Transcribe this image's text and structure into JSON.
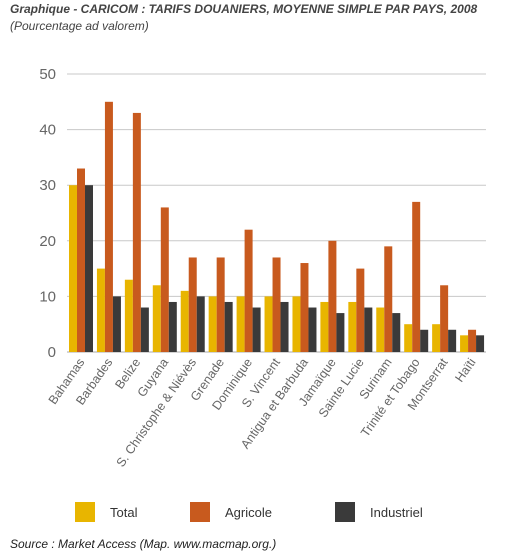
{
  "header": {
    "title": "Graphique - CARICOM  : TARIFS DOUANIERS, MOYENNE SIMPLE PAR PAYS, 2008",
    "subtitle": "(Pourcentage ad valorem)"
  },
  "footer": {
    "source": "Source  : Market Access (Map. www.macmap.org.)"
  },
  "chart_data": {
    "type": "bar",
    "title": "Graphique - CARICOM  : TARIFS DOUANIERS, MOYENNE SIMPLE PAR PAYS, 2008",
    "subtitle": "(Pourcentage ad valorem)",
    "xlabel": "",
    "ylabel": "",
    "ylim": [
      0,
      50
    ],
    "yticks": [
      0,
      10,
      20,
      30,
      40,
      50
    ],
    "grid": true,
    "legend_position": "bottom",
    "categories": [
      "Bahamas",
      "Barbades",
      "Belize",
      "Guyana",
      "S. Christophe & Niévès",
      "Grenade",
      "Dominique",
      "S. Vincent",
      "Antigua et Barbuda",
      "Jamaïque",
      "Sainte Lucie",
      "Surinam",
      "Trinité et Tobago",
      "Montserrat",
      "Haïti"
    ],
    "series": [
      {
        "name": "Total",
        "color": "#e8b500",
        "values": [
          30,
          15,
          13,
          12,
          11,
          10,
          10,
          10,
          10,
          9,
          9,
          8,
          5,
          5,
          3
        ]
      },
      {
        "name": "Agricole",
        "color": "#c85a1e",
        "values": [
          33,
          45,
          43,
          26,
          17,
          17,
          22,
          17,
          16,
          20,
          15,
          19,
          27,
          12,
          4
        ]
      },
      {
        "name": "Industriel",
        "color": "#3a3a3a",
        "values": [
          30,
          10,
          8,
          9,
          10,
          9,
          8,
          9,
          8,
          7,
          8,
          7,
          4,
          4,
          3
        ]
      }
    ]
  }
}
